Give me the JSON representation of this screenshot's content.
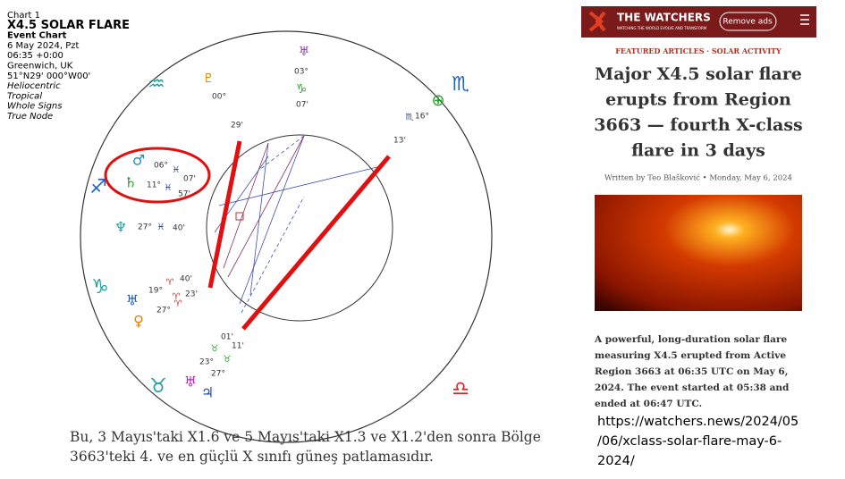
{
  "chart_info": [
    "Chart 1",
    "X4.5 SOLAR FLARE",
    "Event Chart",
    "6 May 2024, Pzt",
    "06:35 +0:00",
    "Greenwich, UK",
    "51°N29' 000°W00'",
    "Heliocentric",
    "Tropical",
    "Whole Signs",
    "True Node"
  ],
  "wheel_labels": [
    "♅",
    "03°",
    "♑",
    "07'",
    "♇",
    "00°",
    "29'",
    "♒",
    "♏",
    "⊕",
    "♏",
    "16°",
    "13'",
    "♂",
    "06°",
    "♓",
    "♄",
    "11°",
    "♓",
    "07'",
    "57'",
    "♐",
    "♆",
    "27°",
    "♓",
    "40'",
    "40'",
    "♈",
    "19°",
    "♈",
    "23'",
    "27°",
    "♈",
    "♑",
    "♀",
    "♅",
    "01'",
    "11'",
    "♉",
    "♉",
    "23°",
    "27°",
    "♅",
    "♃",
    "♉",
    "♎"
  ],
  "article": {
    "logo": "THE WATCHERS",
    "tagline": "WATCHING THE WORLD EVOLVE AND TRANSFORM",
    "button": "Remove ads",
    "kicker": "FEATURED ARTICLES · SOLAR ACTIVITY",
    "headline": [
      "Major X4.5 solar flare",
      "erupts from Region",
      "3663 — fourth X-class",
      "flare in 3 days"
    ],
    "byline": "Written by Teo Blašković • Monday, May 6, 2024",
    "summary": [
      "A powerful, long-duration solar flare",
      "measuring X4.5 erupted from Active",
      "Region 3663 at 06:35 UTC on May 6,",
      "2024. The event started at 05:38 and",
      "ended at 06:47 UTC."
    ]
  },
  "caption": [
    "Bu, 3 Mayıs'taki X1.6 ve 5 Mayıs'taki X1.3 ve X1.2'den sonra Bölge",
    "3663'teki 4. ve en güçlü X sınıfı güneş patlamasıdır."
  ],
  "url": [
    "https://watchers.news/2024/05",
    "/06/xclass-solar-flare-may-6-",
    "2024/"
  ]
}
